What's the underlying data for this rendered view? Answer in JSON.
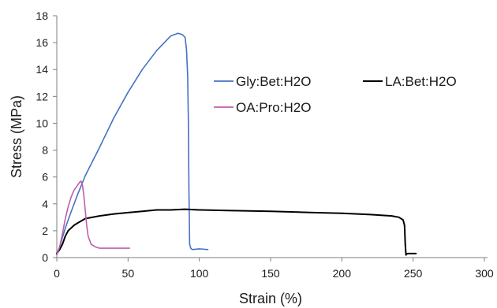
{
  "chart_data": {
    "type": "line",
    "xlabel": "Strain (%)",
    "ylabel": "Stress (MPa)",
    "xlim": [
      0,
      300
    ],
    "ylim": [
      0,
      18
    ],
    "xticks": [
      0,
      50,
      100,
      150,
      200,
      250,
      300
    ],
    "yticks": [
      0,
      2,
      4,
      6,
      8,
      10,
      12,
      14,
      16,
      18
    ],
    "xtick_labels": [
      "0",
      "50",
      "100",
      "150",
      "200",
      "250",
      "300"
    ],
    "ytick_labels": [
      "0",
      "2",
      "4",
      "6",
      "8",
      "10",
      "12",
      "14",
      "16",
      "18"
    ],
    "grid": false,
    "legend_position": "inside, upper right",
    "series": [
      {
        "name": "Gly:Bet:H2O",
        "color": "#4472c4",
        "x": [
          0,
          2,
          4,
          6,
          10,
          15,
          20,
          30,
          40,
          50,
          60,
          70,
          80,
          85,
          88,
          90,
          91,
          91.8,
          92.3,
          92.7,
          93.2,
          94,
          95,
          100,
          106
        ],
        "y": [
          0.3,
          0.8,
          1.5,
          2.2,
          3.4,
          4.8,
          6.1,
          8.2,
          10.4,
          12.3,
          14.0,
          15.4,
          16.5,
          16.7,
          16.6,
          16.4,
          15.5,
          13.5,
          10.0,
          5.0,
          1.0,
          0.7,
          0.6,
          0.65,
          0.6
        ]
      },
      {
        "name": "LA:Bet:H2O",
        "color": "#000000",
        "x": [
          0,
          2,
          4,
          6,
          8,
          12,
          15,
          20,
          30,
          40,
          50,
          60,
          70,
          80,
          90,
          100,
          120,
          150,
          180,
          200,
          220,
          235,
          240,
          243,
          244,
          244.5,
          245,
          246,
          250,
          252
        ],
        "y": [
          0.3,
          0.6,
          1.0,
          1.6,
          2.0,
          2.4,
          2.6,
          2.9,
          3.1,
          3.25,
          3.35,
          3.45,
          3.55,
          3.55,
          3.6,
          3.55,
          3.5,
          3.45,
          3.35,
          3.3,
          3.2,
          3.1,
          3.0,
          2.8,
          2.4,
          1.0,
          0.2,
          0.3,
          0.3,
          0.3
        ]
      },
      {
        "name": "OA:Pro:H2O",
        "color": "#c05fa8",
        "x": [
          0,
          2,
          4,
          6,
          8,
          10,
          12,
          14,
          16,
          17,
          18,
          19,
          20,
          21,
          22,
          24,
          27,
          30,
          35,
          40,
          45,
          51
        ],
        "y": [
          0.2,
          0.8,
          1.8,
          2.9,
          3.8,
          4.5,
          5.0,
          5.3,
          5.6,
          5.7,
          5.4,
          4.6,
          3.5,
          2.4,
          1.6,
          1.0,
          0.8,
          0.7,
          0.7,
          0.7,
          0.7,
          0.7
        ]
      }
    ]
  }
}
